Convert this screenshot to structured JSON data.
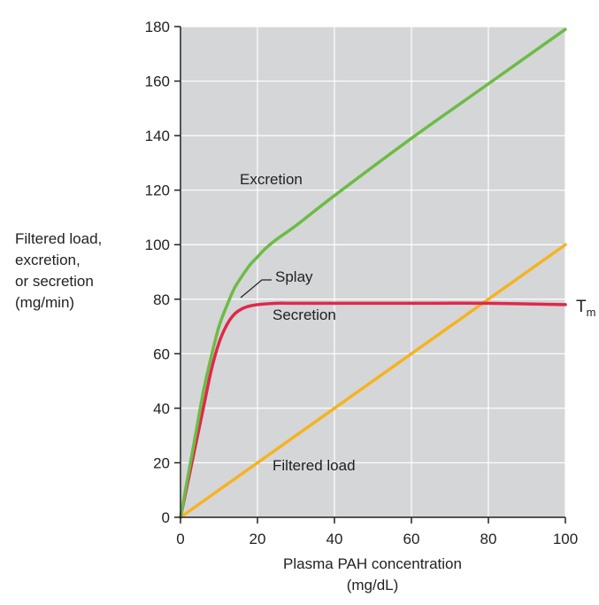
{
  "chart_data": {
    "type": "line",
    "xlabel": [
      "Plasma PAH concentration",
      "(mg/dL)"
    ],
    "ylabel": [
      "Filtered load,",
      "excretion,",
      "or secretion",
      "(mg/min)"
    ],
    "xlim": [
      0,
      100
    ],
    "ylim": [
      0,
      180
    ],
    "xticks": [
      0,
      20,
      40,
      60,
      80,
      100
    ],
    "yticks": [
      0,
      20,
      40,
      60,
      80,
      100,
      120,
      140,
      160,
      180
    ],
    "grid": true,
    "series": [
      {
        "name": "Excretion",
        "color": "#6dbb45",
        "x": [
          0,
          2,
          4,
          6,
          8,
          10,
          12,
          14,
          16,
          18,
          20,
          22,
          25,
          30,
          40,
          60,
          80,
          100
        ],
        "y": [
          0,
          15.5,
          31,
          46.5,
          59,
          70,
          77.5,
          84,
          88.5,
          92.5,
          95.5,
          98.5,
          102,
          107,
          118,
          139,
          159,
          179
        ]
      },
      {
        "name": "Secretion",
        "color": "#e0284a",
        "x": [
          0,
          2,
          4,
          6,
          8,
          10,
          12,
          14,
          16,
          18,
          20,
          25,
          30,
          40,
          60,
          80,
          100
        ],
        "y": [
          0,
          13.5,
          27,
          40.5,
          54,
          64,
          70.5,
          74.5,
          76.5,
          77.5,
          78,
          78.5,
          78.5,
          78.5,
          78.5,
          78.5,
          78
        ]
      },
      {
        "name": "Filtered load",
        "color": "#f5b321",
        "x": [
          0,
          100
        ],
        "y": [
          0,
          100
        ]
      }
    ],
    "annotations": {
      "splay": "Splay",
      "tm_main": "T",
      "tm_sub": "m"
    }
  },
  "colors": {
    "plot_bg": "#d5d6d8",
    "grid": "#ffffff",
    "axis": "#222222"
  }
}
